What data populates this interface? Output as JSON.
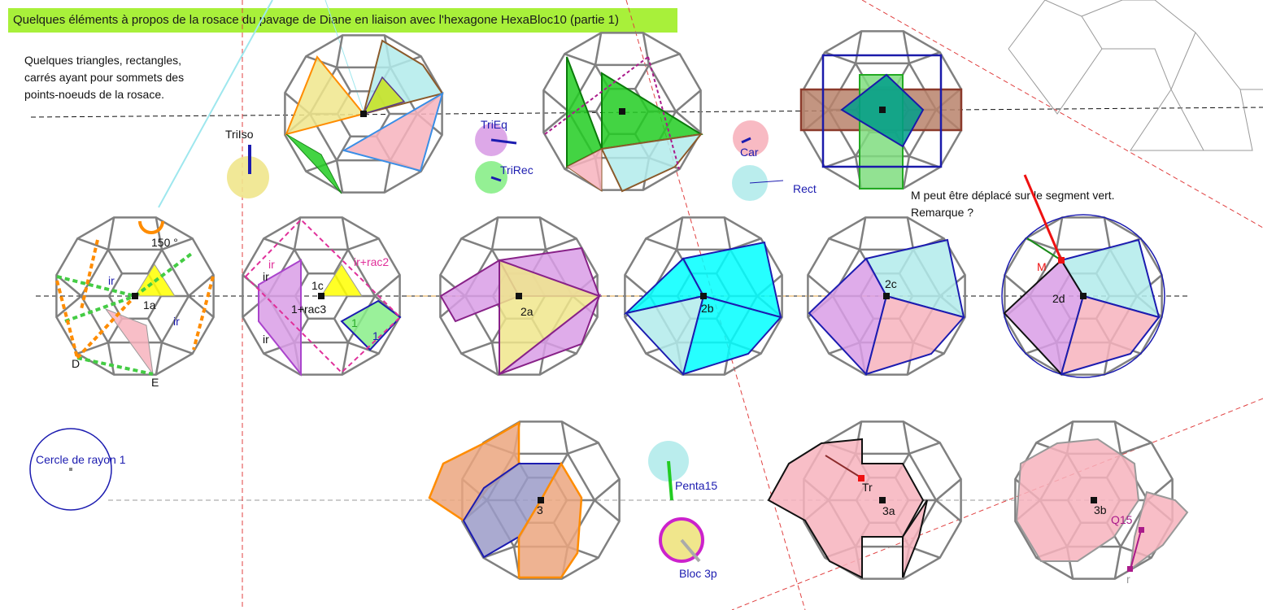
{
  "title": "Quelques éléments à propos de la rosace du pavage de Diane en liaison avec l'hexagone HexaBloc10 (partie 1)",
  "intro": {
    "line1": "Quelques triangles, rectangles,",
    "line2": "carrés ayant pour sommets  des",
    "line3": "points-noeuds de la rosace."
  },
  "remark": {
    "line1": "M peut être déplacé sur le segment vert.",
    "line2": "Remarque ?"
  },
  "controls": {
    "tri_iso": "TriIso",
    "tri_eq": "TriEq",
    "tri_rec": "TriRec",
    "car": "Car",
    "rect": "Rect",
    "penta15": "Penta15",
    "bloc3p": "Bloc 3p",
    "cercle": "Cercle de rayon 1",
    "q15": "Q15",
    "r": "r",
    "m": "M",
    "tr": "Tr"
  },
  "rosace_labels": {
    "r1a": "1a",
    "r1c": "1c",
    "r2a": "2a",
    "r2b": "2b",
    "r2c": "2c",
    "r2d": "2d",
    "r3": "3",
    "r3a": "3a",
    "r3b": "3b"
  },
  "annotations": {
    "angle": "150 °",
    "ir": "ir",
    "ir_rac2": "ir+rac2",
    "one_rac3": "1+rac3",
    "one": "1",
    "d": "D",
    "e": "E"
  },
  "colors": {
    "title_bg": "#a8f03a",
    "rosace_stroke": "#808080",
    "pink": "#f7b3bd",
    "yellow": "#f0e68c",
    "cyan": "#00ffff",
    "light_cyan": "#b2ebeb",
    "violet": "#d99ee6",
    "green": "#22cc22",
    "orange": "#ff8c00",
    "navy": "#1c1cb0",
    "slate": "#9b9bc8",
    "salmon": "#eba67f"
  }
}
